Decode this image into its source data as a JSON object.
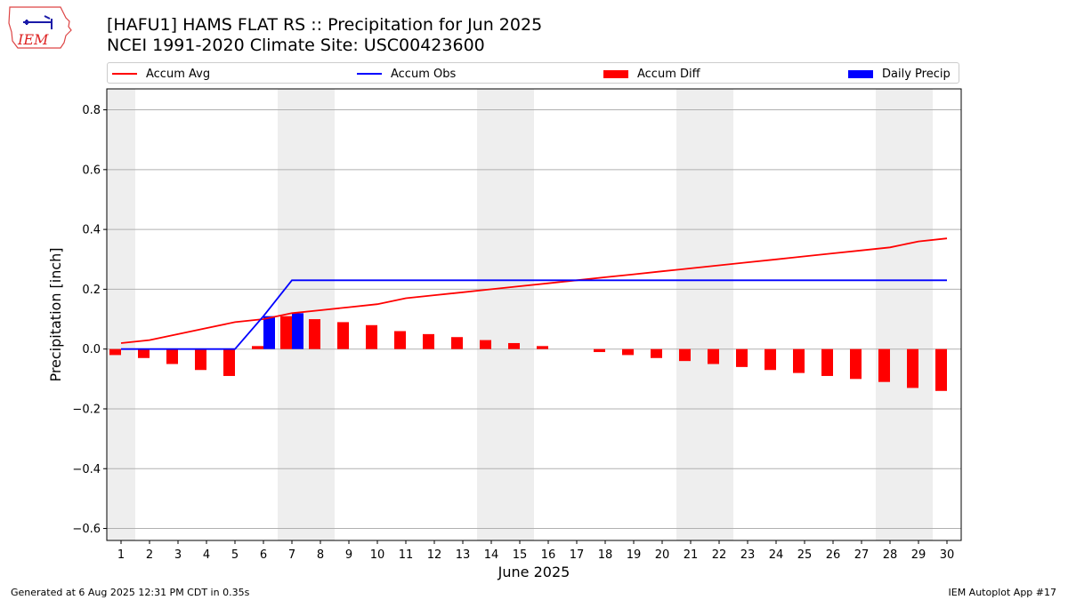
{
  "header": {
    "title_line1": "[HAFU1] HAMS FLAT RS :: Precipitation for Jun 2025",
    "title_line2": "NCEI 1991-2020 Climate Site: USC00423600",
    "logo_text": "IEM"
  },
  "footer": {
    "left": "Generated at 6 Aug 2025 12:31 PM CDT in 0.35s",
    "right": "IEM Autoplot App #17"
  },
  "legend": {
    "placement": "top",
    "items": [
      {
        "label": "Accum Avg",
        "kind": "line",
        "color": "#ff0000"
      },
      {
        "label": "Accum Obs",
        "kind": "line",
        "color": "#0000ff"
      },
      {
        "label": "Accum Diff",
        "kind": "bar",
        "color": "#ff0000"
      },
      {
        "label": "Daily Precip",
        "kind": "bar",
        "color": "#0000ff"
      }
    ]
  },
  "chart_data": {
    "type": "bar",
    "title": "[HAFU1] HAMS FLAT RS :: Precipitation for Jun 2025",
    "subtitle": "NCEI 1991-2020 Climate Site: USC00423600",
    "xlabel": "June 2025",
    "ylabel": "Precipitation [inch]",
    "xlim": [
      0.5,
      30.5
    ],
    "ylim": [
      -0.64,
      0.87
    ],
    "x": [
      1,
      2,
      3,
      4,
      5,
      6,
      7,
      8,
      9,
      10,
      11,
      12,
      13,
      14,
      15,
      16,
      17,
      18,
      19,
      20,
      21,
      22,
      23,
      24,
      25,
      26,
      27,
      28,
      29,
      30
    ],
    "yticks": [
      -0.6,
      -0.4,
      -0.2,
      0.0,
      0.2,
      0.4,
      0.6,
      0.8
    ],
    "ytick_labels": [
      "−0.6",
      "−0.4",
      "−0.2",
      "0.0",
      "0.2",
      "0.4",
      "0.6",
      "0.8"
    ],
    "grid": "horizontal",
    "weekend_shading": [
      [
        0.5,
        1.5
      ],
      [
        6.5,
        8.5
      ],
      [
        13.5,
        15.5
      ],
      [
        20.5,
        22.5
      ],
      [
        27.5,
        29.5
      ]
    ],
    "shading_color": "#eeeeee",
    "series": [
      {
        "name": "Accum Avg",
        "type": "line",
        "color": "#ff0000",
        "values": [
          0.02,
          0.03,
          0.05,
          0.07,
          0.09,
          0.1,
          0.12,
          0.13,
          0.14,
          0.15,
          0.17,
          0.18,
          0.19,
          0.2,
          0.21,
          0.22,
          0.23,
          0.24,
          0.25,
          0.26,
          0.27,
          0.28,
          0.29,
          0.3,
          0.31,
          0.32,
          0.33,
          0.34,
          0.36,
          0.37
        ]
      },
      {
        "name": "Accum Obs",
        "type": "line",
        "color": "#0000ff",
        "values": [
          0,
          0,
          0,
          0,
          0,
          0.11,
          0.23,
          0.23,
          0.23,
          0.23,
          0.23,
          0.23,
          0.23,
          0.23,
          0.23,
          0.23,
          0.23,
          0.23,
          0.23,
          0.23,
          0.23,
          0.23,
          0.23,
          0.23,
          0.23,
          0.23,
          0.23,
          0.23,
          0.23,
          0.23
        ]
      },
      {
        "name": "Accum Diff",
        "type": "bar",
        "color": "#ff0000",
        "values": [
          -0.02,
          -0.03,
          -0.05,
          -0.07,
          -0.09,
          0.01,
          0.11,
          0.1,
          0.09,
          0.08,
          0.06,
          0.05,
          0.04,
          0.03,
          0.02,
          0.01,
          0.0,
          -0.01,
          -0.02,
          -0.03,
          -0.04,
          -0.05,
          -0.06,
          -0.07,
          -0.08,
          -0.09,
          -0.1,
          -0.11,
          -0.13,
          -0.14
        ]
      },
      {
        "name": "Daily Precip",
        "type": "bar",
        "color": "#0000ff",
        "values": [
          0,
          0,
          0,
          0,
          0,
          0.11,
          0.12,
          0,
          0,
          0,
          0,
          0,
          0,
          0,
          0,
          0,
          0,
          0,
          0,
          0,
          0,
          0,
          0,
          0,
          0,
          0,
          0,
          0,
          0,
          0
        ]
      }
    ]
  }
}
